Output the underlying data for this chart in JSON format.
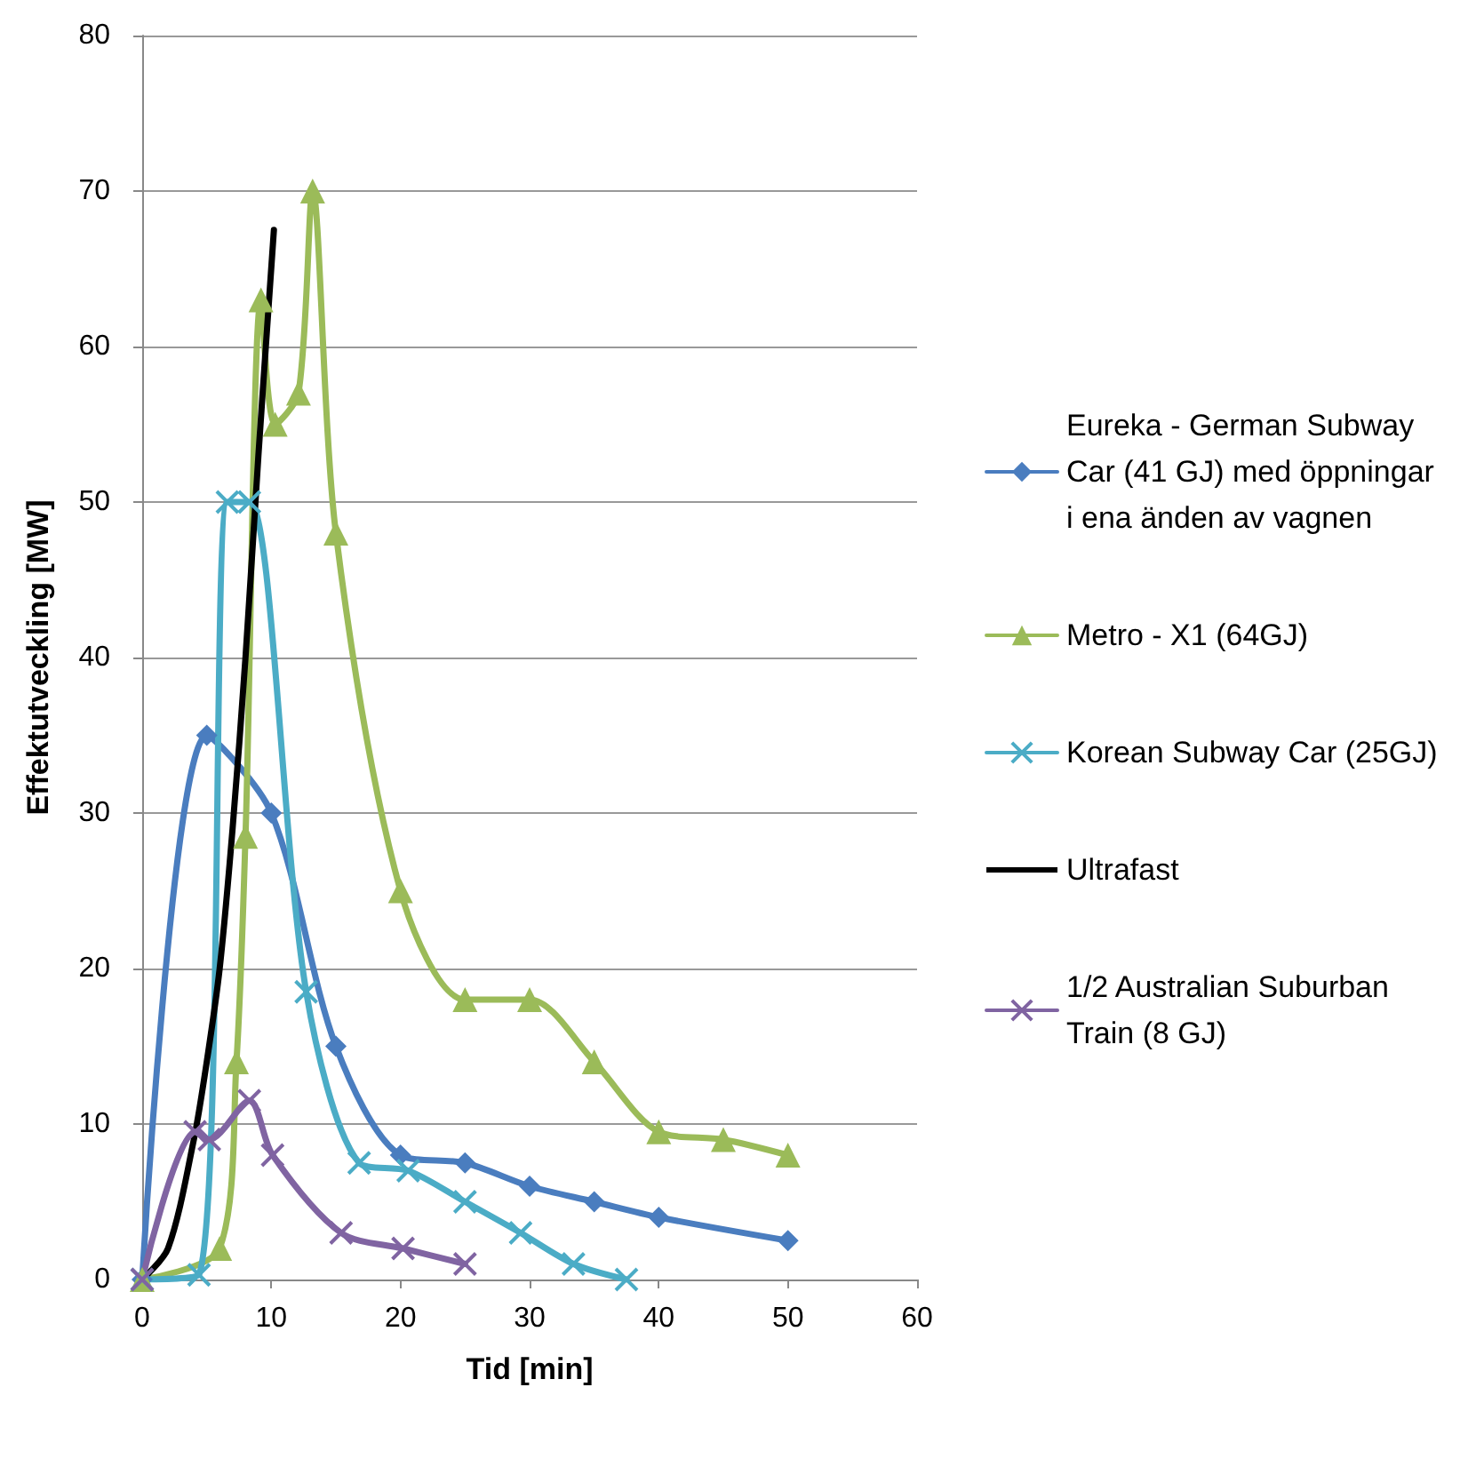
{
  "chart_data": {
    "type": "line",
    "xlabel": "Tid [min]",
    "ylabel": "Effektutveckling [MW]",
    "xlim": [
      0,
      60
    ],
    "xticks": [
      0,
      10,
      20,
      30,
      40,
      50,
      60
    ],
    "ylim": [
      0,
      80
    ],
    "yticks": [
      0,
      10,
      20,
      30,
      40,
      50,
      60,
      70,
      80
    ],
    "grid": "y",
    "legend": "right",
    "line_style": "solid",
    "series": [
      {
        "name": "Eureka - German Subway Car (41 GJ) med öppningar i ena änden av vagnen",
        "color": "#4a7dbf",
        "marker": "diamond",
        "x": [
          0,
          5,
          10,
          15,
          20,
          25,
          30,
          35,
          40,
          50
        ],
        "values": [
          0,
          35,
          30,
          15,
          8,
          7.5,
          6,
          5,
          4,
          2.5
        ]
      },
      {
        "name": "Metro - X1 (64GJ)",
        "color": "#9bbb59",
        "marker": "triangle",
        "x": [
          0,
          6,
          7.3,
          8,
          9.2,
          10.3,
          12.1,
          13.2,
          15,
          20,
          25,
          30,
          35,
          40,
          45,
          50
        ],
        "values": [
          0,
          2,
          14,
          28.5,
          63,
          55,
          57,
          70,
          48,
          25,
          18,
          18,
          14,
          9.5,
          9,
          8
        ]
      },
      {
        "name": "Korean Subway Car (25GJ)",
        "color": "#4bacc6",
        "marker": "cross",
        "x": [
          0,
          4.4,
          6.6,
          8.3,
          12.7,
          16.8,
          20.6,
          25,
          29.3,
          33.4,
          37.5
        ],
        "values": [
          0,
          0.3,
          50,
          50,
          18.5,
          7.5,
          7,
          5,
          3,
          1,
          0
        ]
      },
      {
        "name": "Ultrafast",
        "color": "#000000",
        "marker": "none",
        "x": [
          0,
          2,
          4,
          5,
          6,
          7,
          8,
          9,
          10.2
        ],
        "values": [
          0,
          2,
          9,
          14,
          20,
          29,
          40,
          53,
          67.5
        ]
      },
      {
        "name": "1/2 Australian Suburban Train (8 GJ)",
        "color": "#8064a2",
        "marker": "cross",
        "x": [
          0,
          4.1,
          5.2,
          8.3,
          10.1,
          15.4,
          20.2,
          25
        ],
        "values": [
          0,
          9.5,
          9,
          11.5,
          8,
          3,
          2,
          1
        ]
      }
    ]
  }
}
